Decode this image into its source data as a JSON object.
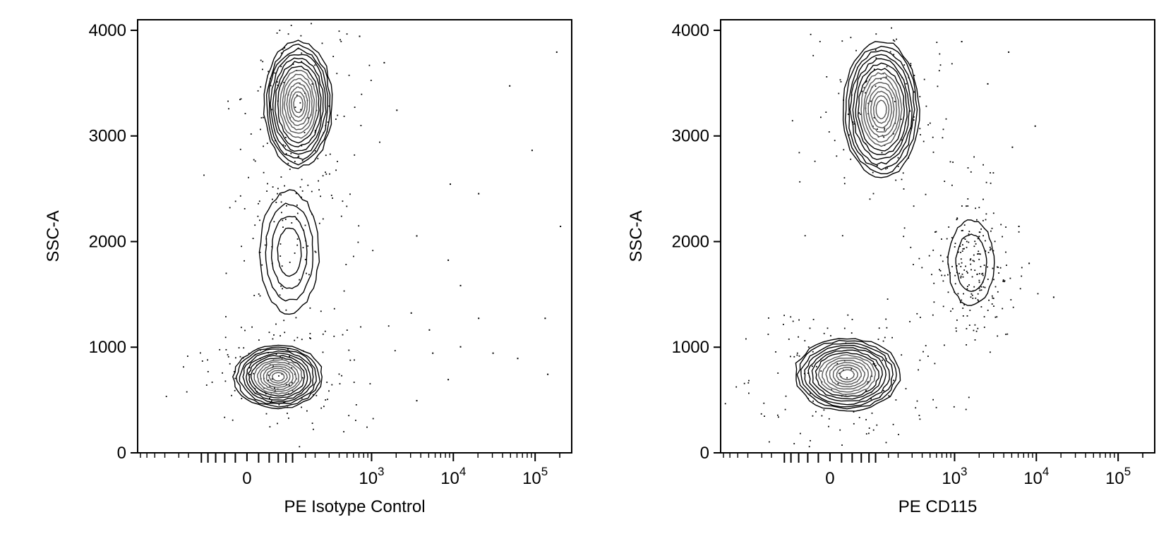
{
  "chart_data": [
    {
      "type": "scatter",
      "title": "",
      "xlabel": "PE Isotype Control",
      "ylabel": "SSC-A",
      "x_scale": "biexponential",
      "ylim": [
        0,
        4100
      ],
      "y_ticks": [
        "0",
        "1000",
        "2000",
        "3000",
        "4000"
      ],
      "x_ticks": [
        {
          "base": "0",
          "exp": ""
        },
        {
          "base": "10",
          "exp": "3"
        },
        {
          "base": "10",
          "exp": "4"
        },
        {
          "base": "10",
          "exp": "5"
        }
      ],
      "grid": false,
      "legend": "none",
      "populations": [
        {
          "x_center": 60,
          "y_center": 720,
          "x_spread": 150,
          "y_spread": 260,
          "density": "high"
        },
        {
          "x_center": 120,
          "y_center": 3300,
          "x_spread": 170,
          "y_spread": 520,
          "density": "high"
        },
        {
          "x_center": 90,
          "y_center": 1900,
          "x_spread": 110,
          "y_spread": 500,
          "density": "low"
        }
      ],
      "outlier_events": [
        {
          "x": 700,
          "y": 3950
        },
        {
          "x": 1400,
          "y": 3700
        },
        {
          "x": 48000,
          "y": 3480
        },
        {
          "x": 180000,
          "y": 3800
        },
        {
          "x": 2000,
          "y": 3250
        },
        {
          "x": 90000,
          "y": 2870
        },
        {
          "x": 9000,
          "y": 2550
        },
        {
          "x": 20000,
          "y": 2460
        },
        {
          "x": 3500,
          "y": 2060
        },
        {
          "x": 8500,
          "y": 1830
        },
        {
          "x": 12000,
          "y": 1590
        },
        {
          "x": 3000,
          "y": 1330
        },
        {
          "x": 20000,
          "y": 1280
        },
        {
          "x": 5000,
          "y": 1170
        },
        {
          "x": 12000,
          "y": 1010
        },
        {
          "x": 5500,
          "y": 950
        },
        {
          "x": 30000,
          "y": 950
        },
        {
          "x": 60000,
          "y": 900
        },
        {
          "x": 8500,
          "y": 700
        },
        {
          "x": 3500,
          "y": 500
        },
        {
          "x": 130000,
          "y": 1280
        },
        {
          "x": 140000,
          "y": 750
        },
        {
          "x": 200000,
          "y": 2150
        }
      ]
    },
    {
      "type": "scatter",
      "title": "",
      "xlabel": "PE CD115",
      "ylabel": "SSC-A",
      "x_scale": "biexponential",
      "ylim": [
        0,
        4100
      ],
      "y_ticks": [
        "0",
        "1000",
        "2000",
        "3000",
        "4000"
      ],
      "x_ticks": [
        {
          "base": "0",
          "exp": ""
        },
        {
          "base": "10",
          "exp": "3"
        },
        {
          "base": "10",
          "exp": "4"
        },
        {
          "base": "10",
          "exp": "5"
        }
      ],
      "grid": false,
      "legend": "none",
      "populations": [
        {
          "x_center": 30,
          "y_center": 740,
          "x_spread": 140,
          "y_spread": 300,
          "density": "high"
        },
        {
          "x_center": 120,
          "y_center": 3250,
          "x_spread": 200,
          "y_spread": 560,
          "density": "high"
        },
        {
          "x_center": 1600,
          "y_center": 1800,
          "x_spread": 1200,
          "y_spread": 350,
          "density": "medium"
        }
      ],
      "outlier_events": [
        {
          "x": 1200,
          "y": 3900
        },
        {
          "x": 4500,
          "y": 3800
        },
        {
          "x": 9500,
          "y": 3100
        },
        {
          "x": 16000,
          "y": 1480
        },
        {
          "x": 8000,
          "y": 1800
        },
        {
          "x": 6000,
          "y": 2150
        },
        {
          "x": 5000,
          "y": 2900
        },
        {
          "x": 2500,
          "y": 3500
        }
      ]
    }
  ]
}
